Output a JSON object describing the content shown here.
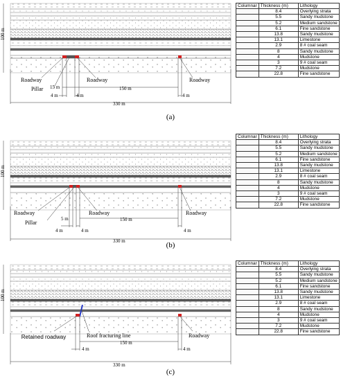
{
  "panels": [
    {
      "label": "(a)",
      "annotations": [
        "Roadway",
        "Pillar",
        "Roadway",
        "Roadway"
      ],
      "dims": [
        "15 m",
        "4 m",
        "4 m",
        "150 m",
        "4 m",
        "330 m"
      ]
    },
    {
      "label": "(b)",
      "annotations": [
        "Roadway",
        "Pillar",
        "Roadway",
        "Roadway"
      ],
      "dims": [
        "5 m",
        "4 m",
        "4 m",
        "150 m",
        "4 m",
        "330 m"
      ]
    },
    {
      "label": "(c)",
      "annotations": [
        "Retained roadway",
        "Roof fracturing line",
        "Roadway"
      ],
      "dims": [
        "4 m",
        "150 m",
        "4 m",
        "330 m"
      ]
    }
  ],
  "height_label": "100 m",
  "table": {
    "headers": [
      "Columnar",
      "Thickness (m)",
      "Lithology"
    ],
    "rows": [
      {
        "thickness": "8.4",
        "lithology": "Overlying strata"
      },
      {
        "thickness": "5.5",
        "lithology": "Sandy mudstone"
      },
      {
        "thickness": "5.2",
        "lithology": "Medium sandstone"
      },
      {
        "thickness": "6.1",
        "lithology": "Fine sandstone"
      },
      {
        "thickness": "13.8",
        "lithology": "Sandy mudstone"
      },
      {
        "thickness": "13.1",
        "lithology": "Limestone"
      },
      {
        "thickness": "2.9",
        "lithology": "8 # coal seam"
      },
      {
        "thickness": "8",
        "lithology": "Sandy mudstone"
      },
      {
        "thickness": "4",
        "lithology": "Mudstone"
      },
      {
        "thickness": "3",
        "lithology": "9 # coal seam"
      },
      {
        "thickness": "7.2",
        "lithology": "Mudstone"
      },
      {
        "thickness": "22.8",
        "lithology": "Fine sandstone"
      }
    ]
  },
  "colors": {
    "roadway": "#d42020",
    "fracture": "#2a3cc8",
    "line": "#333333"
  }
}
